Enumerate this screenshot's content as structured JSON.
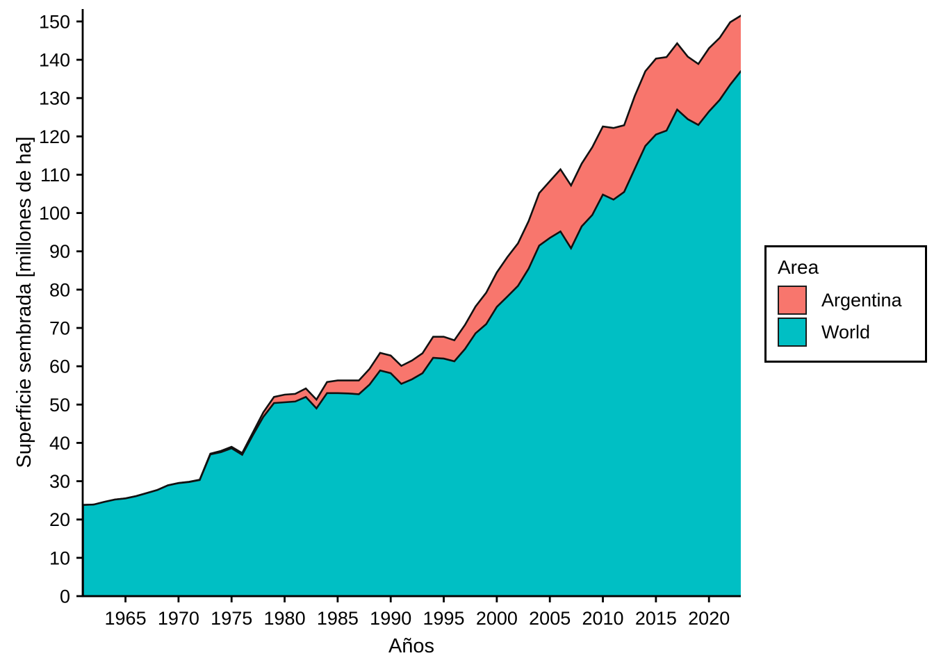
{
  "figure": {
    "xlabel": "Años",
    "ylabel": "Superficie sembrada [millones de ha]",
    "legend": {
      "title": "Area",
      "items": [
        {
          "label": "Argentina",
          "color": "#F8766D"
        },
        {
          "label": "World",
          "color": "#00BFC4"
        }
      ]
    }
  },
  "chart_data": {
    "type": "area",
    "stacked": true,
    "title": "",
    "xlabel": "Años",
    "ylabel": "Superficie sembrada [millones de ha]",
    "legend_title": "Area",
    "legend_position": "right",
    "grid": false,
    "outline_color": "#111111",
    "axis_color": "#000000",
    "xlim": [
      1961,
      2023
    ],
    "ylim": [
      0,
      153.3
    ],
    "x_ticks": [
      1965,
      1970,
      1975,
      1980,
      1985,
      1990,
      1995,
      2000,
      2005,
      2010,
      2015,
      2020
    ],
    "y_ticks": [
      0,
      10,
      20,
      30,
      40,
      50,
      60,
      70,
      80,
      90,
      100,
      110,
      120,
      130,
      140,
      150
    ],
    "x": [
      1961,
      1962,
      1963,
      1964,
      1965,
      1966,
      1967,
      1968,
      1969,
      1970,
      1971,
      1972,
      1973,
      1974,
      1975,
      1976,
      1977,
      1978,
      1979,
      1980,
      1981,
      1982,
      1983,
      1984,
      1985,
      1986,
      1987,
      1988,
      1989,
      1990,
      1991,
      1992,
      1993,
      1994,
      1995,
      1996,
      1997,
      1998,
      1999,
      2000,
      2001,
      2002,
      2003,
      2004,
      2005,
      2006,
      2007,
      2008,
      2009,
      2010,
      2011,
      2012,
      2013,
      2014,
      2015,
      2016,
      2017,
      2018,
      2019,
      2020,
      2021,
      2022,
      2023
    ],
    "series": [
      {
        "name": "World",
        "color": "#00BFC4",
        "stack_order": 0,
        "values": [
          23.8,
          23.9,
          24.6,
          25.2,
          25.5,
          26.1,
          26.9,
          27.7,
          28.9,
          29.5,
          29.8,
          30.3,
          37.0,
          37.6,
          38.6,
          36.9,
          42.0,
          46.8,
          50.4,
          50.6,
          50.8,
          52.0,
          49.0,
          53.0,
          53.0,
          52.9,
          52.7,
          55.2,
          58.9,
          58.2,
          55.4,
          56.6,
          58.2,
          62.2,
          62.0,
          61.3,
          64.5,
          68.6,
          71.0,
          75.5,
          78.2,
          81.0,
          85.5,
          91.5,
          93.5,
          95.2,
          90.8,
          96.5,
          99.5,
          104.8,
          103.5,
          105.5,
          111.5,
          117.5,
          120.5,
          121.5,
          127.0,
          124.5,
          123.0,
          126.5,
          129.5,
          133.5,
          137.0
        ]
      },
      {
        "name": "Argentina",
        "color": "#F8766D",
        "stack_order": 1,
        "values": [
          0.0,
          0.0,
          0.0,
          0.0,
          0.01,
          0.01,
          0.02,
          0.02,
          0.03,
          0.03,
          0.05,
          0.09,
          0.17,
          0.3,
          0.37,
          0.44,
          0.7,
          1.2,
          1.6,
          2.0,
          2.0,
          2.2,
          2.3,
          2.9,
          3.3,
          3.4,
          3.6,
          4.1,
          4.6,
          4.6,
          4.7,
          4.9,
          5.2,
          5.5,
          5.7,
          5.5,
          6.3,
          7.0,
          8.2,
          9.0,
          10.3,
          11.1,
          12.4,
          13.7,
          14.8,
          16.2,
          16.4,
          16.4,
          17.7,
          17.8,
          18.7,
          17.4,
          19.0,
          19.5,
          19.8,
          19.2,
          17.3,
          16.3,
          15.9,
          16.5,
          16.2,
          16.3,
          14.5
        ]
      }
    ]
  }
}
